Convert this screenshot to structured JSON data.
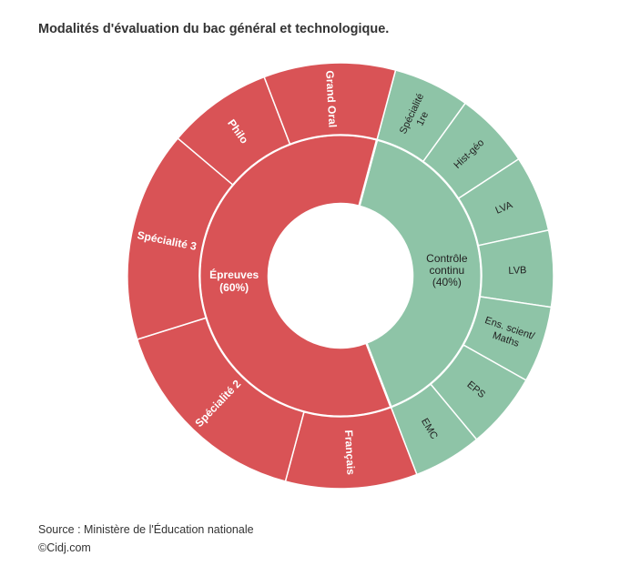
{
  "title": "Modalités d'évaluation du bac général et technologique.",
  "footer": {
    "source": "Source : Ministère de l'Éducation nationale",
    "credit": "©Cidj.com"
  },
  "colors": {
    "red": "#d95356",
    "green": "#8ec4a7"
  },
  "chart_data": {
    "type": "sunburst",
    "title": "Modalités d'évaluation du bac général et technologique.",
    "inner": [
      {
        "label": [
          "Contrôle",
          "continu",
          "(40%)"
        ],
        "value": 40,
        "color": "green"
      },
      {
        "label": [
          "Épreuves",
          "(60%)"
        ],
        "value": 60,
        "color": "red"
      }
    ],
    "outer": [
      {
        "label": [
          "Spécialité",
          "1re"
        ],
        "value": 5.8,
        "group": 0
      },
      {
        "label": [
          "Hist-géo"
        ],
        "value": 5.8,
        "group": 0
      },
      {
        "label": [
          "LVA"
        ],
        "value": 5.8,
        "group": 0
      },
      {
        "label": [
          "LVB"
        ],
        "value": 5.8,
        "group": 0
      },
      {
        "label": [
          "Ens. scient/",
          "Maths"
        ],
        "value": 5.8,
        "group": 0
      },
      {
        "label": [
          "EPS"
        ],
        "value": 5.8,
        "group": 0
      },
      {
        "label": [
          "EMC"
        ],
        "value": 5.2,
        "group": 0
      },
      {
        "label": [
          "Français"
        ],
        "value": 10,
        "group": 1
      },
      {
        "label": [
          "Spécialité 2"
        ],
        "value": 16,
        "group": 1
      },
      {
        "label": [
          "Spécialité 3"
        ],
        "value": 16,
        "group": 1
      },
      {
        "label": [
          "Philo"
        ],
        "value": 8,
        "group": 1
      },
      {
        "label": [
          "Grand Oral"
        ],
        "value": 10,
        "group": 1
      }
    ]
  }
}
